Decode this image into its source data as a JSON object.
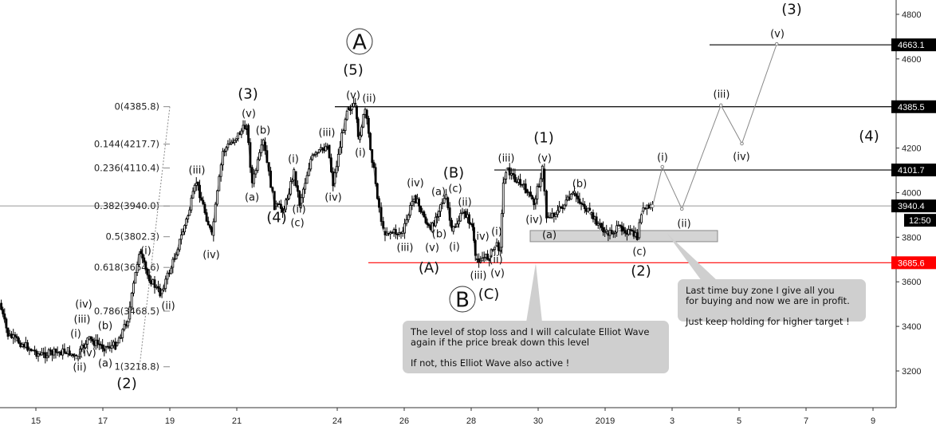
{
  "chart_data": {
    "type": "candlestick",
    "price_axis": {
      "ticks": [
        3200,
        3400,
        3600,
        3800,
        4000,
        4200,
        4600,
        4800
      ],
      "range": [
        3020,
        4870
      ]
    },
    "date_axis": {
      "ticks": [
        "15",
        "17",
        "19",
        "21",
        "24",
        "26",
        "28",
        "30",
        "2019",
        "3",
        "5",
        "7",
        "9"
      ]
    },
    "price_path": [
      [
        "2018-12-13T22:00",
        3504
      ],
      [
        "2018-12-14T04:00",
        3361
      ],
      [
        "2018-12-15T03:00",
        3272
      ],
      [
        "2018-12-15T23:00",
        3290
      ],
      [
        "2018-12-16T05:00",
        3254
      ],
      [
        "2018-12-16T13:00",
        3343
      ],
      [
        "2018-12-17T01:00",
        3307
      ],
      [
        "2018-12-17T09:00",
        3315
      ],
      [
        "2018-12-17T18:00",
        3433
      ],
      [
        "2018-12-18T02:00",
        3737
      ],
      [
        "2018-12-18T08:00",
        3630
      ],
      [
        "2018-12-18T17:00",
        3547
      ],
      [
        "2018-12-19T01:00",
        3665
      ],
      [
        "2018-12-19T13:00",
        3898
      ],
      [
        "2018-12-19T19:00",
        4048
      ],
      [
        "2018-12-20T06:00",
        3808
      ],
      [
        "2018-12-20T14:00",
        4184
      ],
      [
        "2018-12-21T07:00",
        4302
      ],
      [
        "2018-12-21T11:00",
        4041
      ],
      [
        "2018-12-21T19:00",
        4227
      ],
      [
        "2018-12-22T03:00",
        3941
      ],
      [
        "2018-12-22T10:00",
        3926
      ],
      [
        "2018-12-22T17:00",
        4095
      ],
      [
        "2018-12-22T21:00",
        3952
      ],
      [
        "2018-12-23T05:00",
        4149
      ],
      [
        "2018-12-23T17:00",
        4213
      ],
      [
        "2018-12-23T21:00",
        4041
      ],
      [
        "2018-12-24T07:00",
        4381
      ],
      [
        "2018-12-24T13:00",
        4388
      ],
      [
        "2018-12-24T15:00",
        4238
      ],
      [
        "2018-12-24T20:00",
        4370
      ],
      [
        "2018-12-25T06:00",
        3934
      ],
      [
        "2018-12-25T09:00",
        3826
      ],
      [
        "2018-12-25T23:00",
        3819
      ],
      [
        "2018-12-26T07:00",
        3987
      ],
      [
        "2018-12-26T19:00",
        3826
      ],
      [
        "2018-12-27T02:00",
        3952
      ],
      [
        "2018-12-27T06:00",
        3977
      ],
      [
        "2018-12-27T10:00",
        3826
      ],
      [
        "2018-12-27T19:00",
        3916
      ],
      [
        "2018-12-28T01:00",
        3844
      ],
      [
        "2018-12-28T03:00",
        3701
      ],
      [
        "2018-12-28T13:00",
        3712
      ],
      [
        "2018-12-28T17:00",
        3762
      ],
      [
        "2018-12-28T21:00",
        3755
      ],
      [
        "2018-12-28T23:00",
        4041
      ],
      [
        "2018-12-29T01:00",
        4106
      ],
      [
        "2018-12-29T15:00",
        4013
      ],
      [
        "2018-12-29T21:00",
        3952
      ],
      [
        "2018-12-30T03:00",
        4106
      ],
      [
        "2018-12-30T06:00",
        3891
      ],
      [
        "2018-12-30T14:00",
        3916
      ],
      [
        "2018-12-31T02:00",
        3995
      ],
      [
        "2018-12-31T13:00",
        3905
      ],
      [
        "2019-01-01T01:00",
        3816
      ],
      [
        "2019-01-01T12:00",
        3844
      ],
      [
        "2019-01-01T23:00",
        3798
      ],
      [
        "2019-01-02T02:00",
        3916
      ],
      [
        "2019-01-02T10:00",
        3940
      ]
    ],
    "projection": [
      [
        "2019-01-02T10:00",
        3940
      ],
      [
        "2019-01-02T17:00",
        4116
      ],
      [
        "2019-01-03T07:00",
        3927
      ],
      [
        "2019-01-04T11:00",
        4392
      ],
      [
        "2019-01-05T02:00",
        4220
      ],
      [
        "2019-01-06T03:00",
        4667
      ]
    ],
    "horizontal_levels": [
      {
        "price": 4663.1,
        "label": "4663.1",
        "color": "#000000"
      },
      {
        "price": 4385.5,
        "label": "4385.5",
        "color": "#000000"
      },
      {
        "price": 4101.7,
        "label": "4101.7",
        "color": "#000000"
      },
      {
        "price": 3940.4,
        "label": "3940.4",
        "color": "#999999"
      },
      {
        "price": 3685.6,
        "label": "3685.6",
        "color": "#ff0000"
      }
    ],
    "current_price": 3940.4,
    "countdown": "12:50",
    "fibonacci": [
      "0(4385.8)",
      "0.144(4217.7)",
      "0.236(4110.4)",
      "0.382(3940.0)",
      "0.5(3802.3)",
      "0.618(3664.6)",
      "0.786(3468.5)",
      "1(3218.8)"
    ],
    "fib_prices": [
      4385.8,
      4217.7,
      4110.4,
      3940.0,
      3802.3,
      3664.6,
      3468.5,
      3218.8
    ],
    "buy_zone": {
      "price_range": [
        3780,
        3830
      ]
    },
    "wave_labels": [
      "(i)",
      "(ii)",
      "(iii)",
      "(iv)",
      "(3)",
      "(v)",
      "(b)",
      "(a)",
      "(4)",
      "(c)",
      "(ii)",
      "(i)",
      "(iii)",
      "(iv)",
      "(5)",
      "A",
      "(v)",
      "(ii)",
      "(i)",
      "(iii)",
      "(iv)",
      "(v)",
      "(b)",
      "(a)",
      "(c)",
      "(B)",
      "(ii)",
      "(i)",
      "(iv)",
      "(i)",
      "(A)",
      "(iii)",
      "(v)",
      "(ii)",
      "B",
      "(C)",
      "(1)",
      "(iii)",
      "(v)",
      "(iv)",
      "(a)",
      "(b)",
      "(c)",
      "(2)",
      "(i)",
      "(ii)",
      "(iii)",
      "(iv)",
      "(v)",
      "(3)",
      "(4)",
      "(i)",
      "(iii)",
      "(iv)",
      "(b)",
      "(ii)",
      "(iv)",
      "(a)",
      "(2)"
    ],
    "annotations": [
      "The level of stop loss and I will calculate Elliot Wave\nagain if the price break down this level\n\nIf not, this Elliot Wave also active !",
      "Last time buy zone I give all you\nfor buying and now we are in profit.\n\nJust keep holding for higher target !"
    ],
    "colors": {
      "candle": "#000000",
      "wave_line": "#888888",
      "stop_loss": "#ff0000",
      "note_bg": "#cfcfcf"
    }
  }
}
